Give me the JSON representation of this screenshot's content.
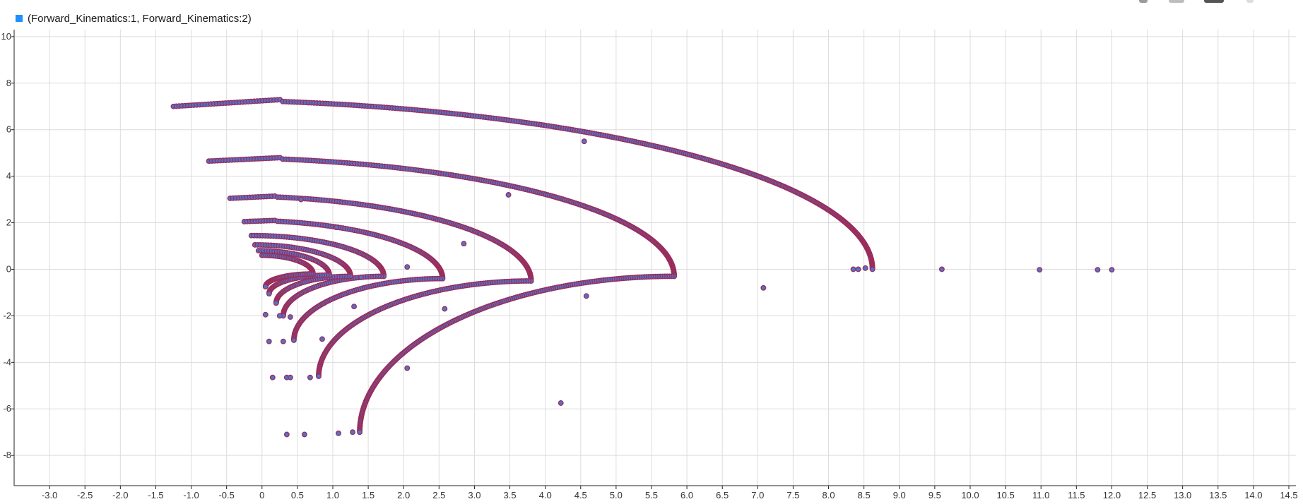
{
  "legend": {
    "label": "(Forward_Kinematics:1, Forward_Kinematics:2)",
    "color": "#1e90ff"
  },
  "toolbar": {
    "icons": [
      "zoom-icon",
      "box-zoom-icon",
      "pan-icon",
      "restore-icon"
    ]
  },
  "colors": {
    "marker_fill": "#4f74c9",
    "marker_edge": "#9b2d5b",
    "grid": "#dcdcdc",
    "axis": "#222222"
  },
  "chart_data": {
    "type": "scatter",
    "title": "",
    "xlabel": "",
    "ylabel": "",
    "xlim": [
      -3.5,
      14.6
    ],
    "ylim": [
      -9.3,
      10.3
    ],
    "grid": true,
    "legend_position": "top-left",
    "x_ticks": [
      -3.0,
      -2.5,
      -2.0,
      -1.5,
      -1.0,
      -0.5,
      0,
      0.5,
      1.0,
      1.5,
      2.0,
      2.5,
      3.0,
      3.5,
      4.0,
      4.5,
      5.0,
      5.5,
      6.0,
      6.5,
      7.0,
      7.5,
      8.0,
      8.5,
      9.0,
      9.5,
      10.0,
      10.5,
      11.0,
      11.5,
      12.0,
      12.5,
      13.0,
      13.5,
      14.0,
      14.5
    ],
    "x_tick_labels": [
      "-3.0",
      "-2.5",
      "-2.0",
      "-1.5",
      "-1.0",
      "-0.5",
      "0",
      "0.5",
      "1.0",
      "1.5",
      "2.0",
      "2.5",
      "3.0",
      "3.5",
      "4.0",
      "4.5",
      "5.0",
      "5.5",
      "6.0",
      "6.5",
      "7.0",
      "7.5",
      "8.0",
      "8.5",
      "9.0",
      "9.5",
      "10.0",
      "10.5",
      "11.0",
      "11.5",
      "12.0",
      "12.5",
      "13.0",
      "13.5",
      "14.0",
      "14.5"
    ],
    "y_ticks": [
      10,
      8,
      6,
      4,
      2,
      0,
      -2,
      -4,
      -6,
      -8
    ],
    "y_tick_labels": [
      "10",
      "8",
      "6",
      "4",
      "2",
      "0",
      "-2",
      "-4",
      "-6",
      "-8"
    ],
    "series": [
      {
        "arcs": [
          {
            "start": [
              -1.25,
              7.0
            ],
            "end": [
              8.62,
              0.0
            ],
            "rx_max": 8.65,
            "y_max": 7.3
          },
          {
            "start": [
              -0.75,
              4.65
            ],
            "end": [
              5.82,
              -0.3
            ],
            "y_max": 4.8
          },
          {
            "start": [
              5.82,
              -0.3
            ],
            "end": [
              1.38,
              -7.0
            ]
          },
          {
            "start": [
              -0.45,
              3.05
            ],
            "end": [
              3.8,
              -0.5
            ],
            "y_max": 3.15
          },
          {
            "start": [
              3.8,
              -0.5
            ],
            "end": [
              0.8,
              -4.6
            ]
          },
          {
            "start": [
              -0.25,
              2.05
            ],
            "end": [
              2.55,
              -0.4
            ],
            "y_max": 2.1
          },
          {
            "start": [
              2.55,
              -0.4
            ],
            "end": [
              0.45,
              -3.05
            ]
          },
          {
            "start": [
              -0.15,
              1.45
            ],
            "end": [
              1.72,
              -0.3
            ]
          },
          {
            "start": [
              1.72,
              -0.3
            ],
            "end": [
              0.3,
              -2.0
            ]
          },
          {
            "start": [
              -0.1,
              1.05
            ],
            "end": [
              1.25,
              -0.3
            ]
          },
          {
            "start": [
              1.25,
              -0.3
            ],
            "end": [
              0.2,
              -1.45
            ]
          },
          {
            "start": [
              -0.05,
              0.8
            ],
            "end": [
              0.95,
              -0.25
            ]
          },
          {
            "start": [
              0.95,
              -0.25
            ],
            "end": [
              0.1,
              -1.05
            ]
          },
          {
            "start": [
              0.0,
              0.6
            ],
            "end": [
              0.72,
              -0.2
            ]
          },
          {
            "start": [
              0.72,
              -0.2
            ],
            "end": [
              0.05,
              -0.75
            ]
          }
        ],
        "outliers": [
          [
            4.55,
            5.5
          ],
          [
            3.48,
            3.2
          ],
          [
            2.85,
            1.1
          ],
          [
            1.05,
            1.8
          ],
          [
            2.05,
            0.1
          ],
          [
            1.4,
            -0.35
          ],
          [
            4.58,
            -1.15
          ],
          [
            2.58,
            -1.7
          ],
          [
            1.3,
            -1.6
          ],
          [
            2.05,
            -4.25
          ],
          [
            4.22,
            -5.75
          ],
          [
            7.08,
            -0.8
          ],
          [
            8.35,
            0.0
          ],
          [
            8.42,
            0.0
          ],
          [
            8.52,
            0.05
          ],
          [
            9.6,
            0.0
          ],
          [
            10.98,
            -0.02
          ],
          [
            11.8,
            -0.02
          ],
          [
            12.0,
            -0.02
          ],
          [
            0.1,
            -3.1
          ],
          [
            0.3,
            -3.1
          ],
          [
            0.15,
            -4.65
          ],
          [
            0.35,
            -4.65
          ],
          [
            0.4,
            -4.65
          ],
          [
            0.68,
            -4.65
          ],
          [
            0.35,
            -7.1
          ],
          [
            0.6,
            -7.1
          ],
          [
            1.08,
            -7.05
          ],
          [
            1.28,
            -7.0
          ],
          [
            0.55,
            3.0
          ],
          [
            0.05,
            -1.95
          ],
          [
            0.25,
            -2.0
          ],
          [
            0.4,
            -2.05
          ],
          [
            0.85,
            -3.0
          ]
        ]
      }
    ]
  }
}
